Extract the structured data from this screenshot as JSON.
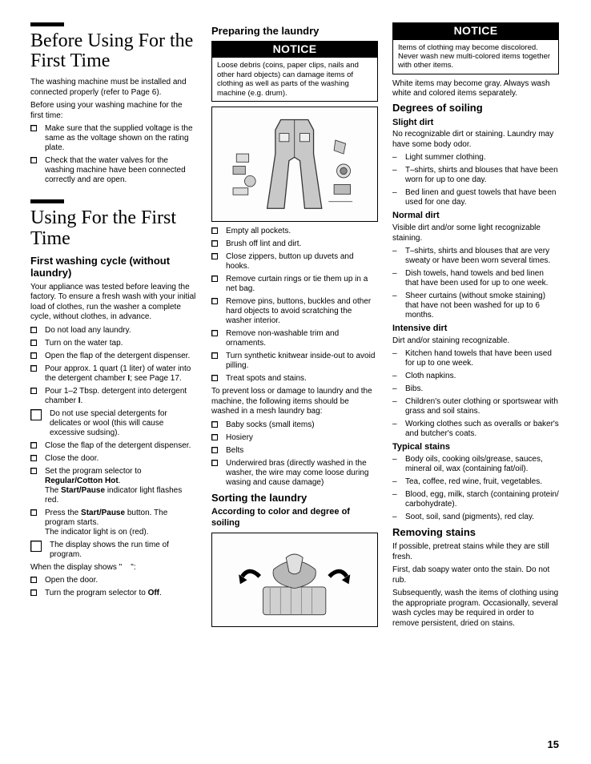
{
  "page_number": "15",
  "col1": {
    "h1a": "Before Using For the First Time",
    "p1": "The washing machine must be installed and connected properly (refer to Page 6).",
    "p2": "Before using your washing machine for the first time:",
    "list1": [
      "Make sure that the supplied voltage is the same as the voltage shown on the rating plate.",
      "Check that the water valves for the washing machine have been connected correctly and are open."
    ],
    "h1b": "Using For the First Time",
    "h2a": "First washing cycle (without laundry)",
    "p3": "Your appliance was tested before leaving the factory. To ensure a fresh wash with your initial load of clothes, run the washer a complete cycle, without clothes, in advance.",
    "list2": [
      "Do not load any laundry.",
      "Turn on the water tap.",
      "Open the flap of the detergent dispenser.",
      "Pour approx. 1 quart (1 liter) of water into the detergent chamber <b>I</b>; see Page 17.",
      "Pour 1–2 Tbsp. detergent into detergent chamber <b>I</b>."
    ],
    "big1": "Do not use special detergents for delicates or wool (this will cause excessive sudsing).",
    "list3": [
      "Close the flap of the detergent dispenser.",
      "Close the door.",
      "Set the program selector to <b>Regular/Cotton Hot</b>.<br>The <b>Start/Pause</b> indicator light flashes red.",
      "Press the <b>Start/Pause</b> button. The program starts.<br>The indicator light is on (red)."
    ],
    "big2": "The display shows the run time of program.",
    "p4": "When the display shows \"&nbsp;&nbsp;&nbsp;&nbsp;\":",
    "list4": [
      "Open the door.",
      "Turn the program selector to <b>Off</b>."
    ]
  },
  "col2": {
    "h2a": "Preparing the laundry",
    "notice_label": "NOTICE",
    "notice1": "Loose debris (coins, paper clips, nails and other hard objects) can damage items of clothing as well as parts of the washing machine (e.g. drum).",
    "list1": [
      "Empty all pockets.",
      "Brush off lint and dirt.",
      "Close zippers, button up duvets and hooks.",
      "Remove curtain rings or tie them up in a net bag.",
      "Remove pins, buttons, buckles and other hard objects to avoid scratching the washer interior.",
      "Remove non-washable trim and ornaments.",
      "Turn synthetic knitwear inside-out to avoid pilling.",
      "Treat spots and stains."
    ],
    "p1": "To prevent loss or damage to laundry and the machine, the following items should be washed in a mesh laundry bag:",
    "list2": [
      "Baby socks (small items)",
      "Hosiery",
      "Belts",
      "Underwired bras (directly washed in the washer, the wire may come loose during wasing and cause damage)"
    ],
    "h2b": "Sorting the laundry",
    "h3a": "According to color and degree of soiling"
  },
  "col3": {
    "notice_label": "NOTICE",
    "notice1": "Items of clothing may become discolored. Never wash new multi-colored items together with other items.",
    "p1": "White items may become gray. Always wash white and colored items separately.",
    "h2a": "Degrees of soiling",
    "slight_h": "Slight dirt",
    "slight_p": "No recognizable dirt or staining. Laundry may have some body odor.",
    "slight_list": [
      "Light summer clothing.",
      "T–shirts, shirts and blouses that have been worn for up to one day.",
      "Bed linen and guest towels that have been used for one day."
    ],
    "normal_h": "Normal dirt",
    "normal_p": "Visible dirt and/or some light recognizable staining.",
    "normal_list": [
      "T–shirts, shirts and blouses that are very sweaty or have been worn several times.",
      "Dish towels, hand towels and bed linen that have been used for up to one week.",
      "Sheer curtains (without smoke staining) that have not been washed for up to 6 months."
    ],
    "intensive_h": "Intensive dirt",
    "intensive_p": "Dirt and/or staining recognizable.",
    "intensive_list": [
      "Kitchen hand towels that have been used for up to one week.",
      "Cloth napkins.",
      "Bibs.",
      "Children's outer clothing or sportswear with grass and soil stains.",
      "Working clothes such as overalls or baker's and butcher's coats."
    ],
    "typical_h": "Typical stains",
    "typical_list": [
      "Body oils, cooking oils/grease, sauces, mineral oil, wax (containing fat/oil).",
      "Tea, coffee, red wine, fruit, vegetables.",
      "Blood, egg, milk, starch (containing protein/ carbohydrate).",
      "Soot, soil, sand (pigments), red clay."
    ],
    "h2b": "Removing stains",
    "p2": "If possible, pretreat stains while they are still fresh.",
    "p3": "First, dab soapy water onto the stain. Do not rub.",
    "p4": "Subsequently, wash the items of clothing using the appropriate program. Occasionally, several wash cycles may be required in order to remove persistent, dried on stains."
  }
}
